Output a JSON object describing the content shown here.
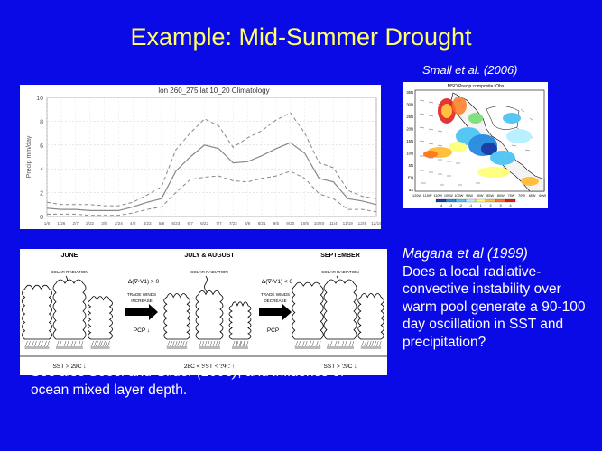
{
  "slide": {
    "title": "Example: Mid-Summer Drought",
    "small_citation": "Small et al. (2006)",
    "right_citation": "Magana et al (1999)",
    "right_body": "Does a local radiative-convective instability over warm pool generate a 90-100 day oscillation in SST and precipitation?",
    "bottom_prefix": "See also ",
    "bottom_citation": "Sobel and Gildor (2003)",
    "bottom_suffix": ", and influence of ocean mixed layer depth."
  },
  "map": {
    "title": "MSD Precip composite: Obs",
    "lat_labels": [
      "35N",
      "30N",
      "25N",
      "20N",
      "15N",
      "10N",
      "5N",
      "EQ",
      "5S"
    ],
    "lon_labels": [
      "120W",
      "115W",
      "110W",
      "105W",
      "100W",
      "95W",
      "90W",
      "85W",
      "80W",
      "75W",
      "70W",
      "65W",
      "60W"
    ],
    "colorbar_labels": [
      "-4",
      "-3",
      "-2",
      "-1",
      "1",
      "2",
      "3",
      "4"
    ],
    "colorbar_colors": [
      "#1b3fa8",
      "#2e8ee0",
      "#56c7f2",
      "#b9f0ff",
      "#ffff80",
      "#ffc040",
      "#ff7a20",
      "#e02020"
    ]
  },
  "cartoon": {
    "panels": [
      {
        "header": "JUNE",
        "radiation_label": "SOLAR RADIATION",
        "sst_label": "SST > 29C ↓"
      },
      {
        "header": "JULY & AUGUST",
        "radiation_label": "SOLAR RADIATION",
        "sst_label": "28C < SST < 29C ↑"
      },
      {
        "header": "SEPTEMBER",
        "radiation_label": "SOLAR RADIATION",
        "sst_label": "SST > 29C ↓"
      }
    ],
    "arrows": [
      {
        "divergence": "Δ(∇•V1) > 0",
        "trade_label": "TRADE WINDS INCREASE",
        "pcp_label": "PCP ↓"
      },
      {
        "divergence": "Δ(∇•V1) < 0",
        "trade_label": "TRADE WINDS DECREASE",
        "pcp_label": "PCP ↑"
      }
    ]
  },
  "chart_data": {
    "type": "line",
    "title": "lon 260_275 lat 10_20 Climatology",
    "ylabel": "Precip mm/day",
    "ylim": [
      0,
      10
    ],
    "yticks": [
      0,
      2,
      4,
      6,
      8,
      10
    ],
    "categories": [
      "1/6",
      "1/26",
      "2/7",
      "2/22",
      "3/9",
      "3/24",
      "4/8",
      "4/23",
      "5/8",
      "5/23",
      "6/7",
      "6/22",
      "7/7",
      "7/22",
      "8/6",
      "8/21",
      "9/5",
      "9/20",
      "10/5",
      "10/20",
      "11/4",
      "11/19",
      "12/4",
      "12/19"
    ],
    "series": [
      {
        "style": "mean",
        "values": [
          0.7,
          0.6,
          0.6,
          0.5,
          0.5,
          0.5,
          0.8,
          1.2,
          1.5,
          3.8,
          5.0,
          6.0,
          5.7,
          4.5,
          4.6,
          5.1,
          5.7,
          6.2,
          5.3,
          3.2,
          2.9,
          1.5,
          1.3,
          1.0
        ]
      },
      {
        "style": "upper",
        "values": [
          1.2,
          1.0,
          1.0,
          1.0,
          0.9,
          0.9,
          1.2,
          1.8,
          2.5,
          5.6,
          7.0,
          8.2,
          7.6,
          5.8,
          6.6,
          7.2,
          8.1,
          8.7,
          7.0,
          4.5,
          4.1,
          2.2,
          1.7,
          1.5
        ]
      },
      {
        "style": "lower",
        "values": [
          0.2,
          0.2,
          0.2,
          0.1,
          0.1,
          0.1,
          0.3,
          0.6,
          0.8,
          2.0,
          3.1,
          3.3,
          3.4,
          3.0,
          2.9,
          3.2,
          3.4,
          3.8,
          3.2,
          1.9,
          1.5,
          0.6,
          0.6,
          0.4
        ]
      }
    ]
  }
}
